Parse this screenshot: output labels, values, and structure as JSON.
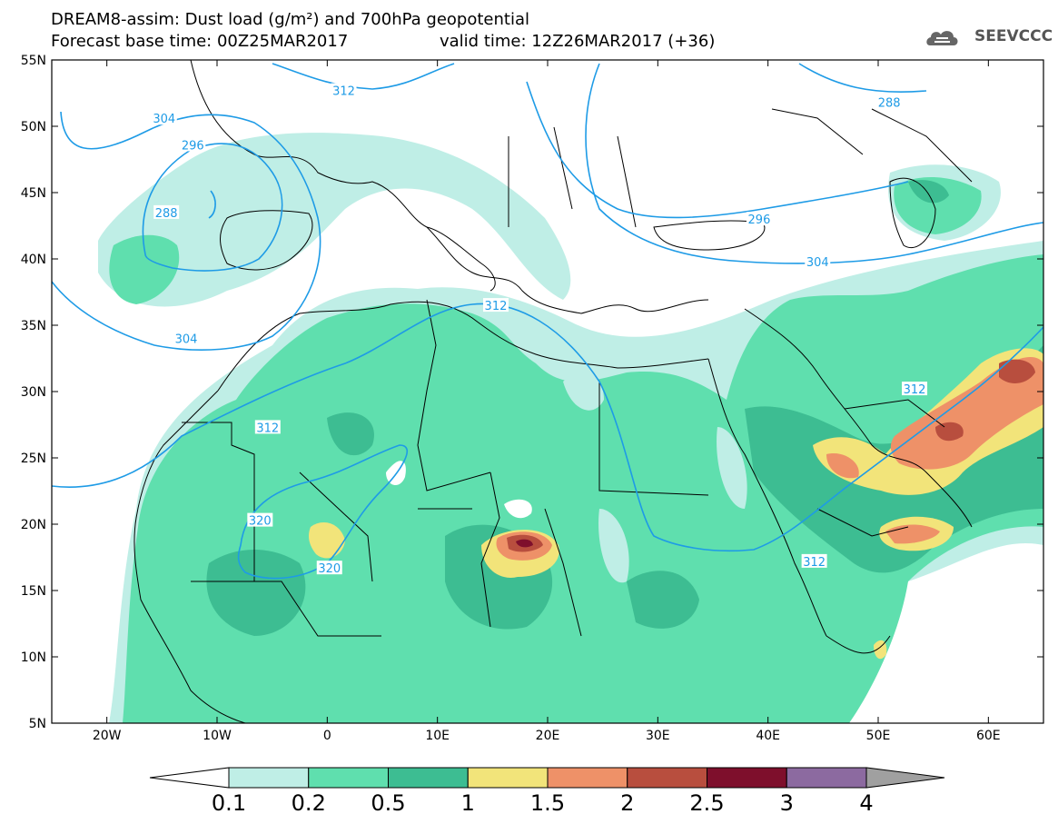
{
  "title": {
    "line1": "DREAM8-assim: Dust load (g/m²) and 700hPa geopotential",
    "line2": "Forecast base time: 00Z25MAR2017",
    "valid": "valid time: 12Z26MAR2017 (+36)"
  },
  "logo": {
    "text": "SEEVCCC",
    "icon": "cloud-icon"
  },
  "axes": {
    "lat_labels": [
      "55N",
      "50N",
      "45N",
      "40N",
      "35N",
      "30N",
      "25N",
      "20N",
      "15N",
      "10N",
      "5N"
    ],
    "lat_values": [
      55,
      50,
      45,
      40,
      35,
      30,
      25,
      20,
      15,
      10,
      5
    ],
    "lon_labels": [
      "20W",
      "10W",
      "0",
      "10E",
      "20E",
      "30E",
      "40E",
      "50E",
      "60E"
    ],
    "lon_values": [
      -20,
      -10,
      0,
      10,
      20,
      30,
      40,
      50,
      60
    ],
    "lon_range": [
      -25,
      65
    ],
    "lat_range": [
      5,
      55
    ]
  },
  "contour_labels": [
    {
      "text": "312",
      "lon": 1.5,
      "lat": 52.7
    },
    {
      "text": "288",
      "lon": 51.0,
      "lat": 51.8
    },
    {
      "text": "304",
      "lon": -14.8,
      "lat": 50.6
    },
    {
      "text": "296",
      "lon": -12.2,
      "lat": 48.6
    },
    {
      "text": "288",
      "lon": -14.6,
      "lat": 43.5
    },
    {
      "text": "296",
      "lon": 39.2,
      "lat": 43.0
    },
    {
      "text": "304",
      "lon": 44.5,
      "lat": 39.8
    },
    {
      "text": "312",
      "lon": 15.3,
      "lat": 36.5
    },
    {
      "text": "304",
      "lon": -12.8,
      "lat": 34.0
    },
    {
      "text": "312",
      "lon": -5.4,
      "lat": 27.3
    },
    {
      "text": "312",
      "lon": 53.3,
      "lat": 30.2
    },
    {
      "text": "320",
      "lon": -6.1,
      "lat": 20.3
    },
    {
      "text": "320",
      "lon": 0.2,
      "lat": 16.7
    },
    {
      "text": "312",
      "lon": 44.2,
      "lat": 17.2
    }
  ],
  "legend": {
    "labels": [
      "0.1",
      "0.2",
      "0.5",
      "1",
      "1.5",
      "2",
      "2.5",
      "3",
      "4"
    ],
    "colors": [
      "#bfeee6",
      "#5fdfae",
      "#3dbd92",
      "#f2e47a",
      "#ee9168",
      "#b84e3e",
      "#7e0f2c",
      "#8c6aa0"
    ],
    "below_color": "#ffffff",
    "above_color": "#a0a0a0"
  },
  "colors": {
    "level1": "#bfeee6",
    "level2": "#5fdfae",
    "level3": "#3dbd92",
    "level4": "#f2e47a",
    "level5": "#ee9168",
    "level6": "#b84e3e",
    "level7": "#7e0f2c",
    "contour": "#1e9be6",
    "border": "#000000"
  }
}
